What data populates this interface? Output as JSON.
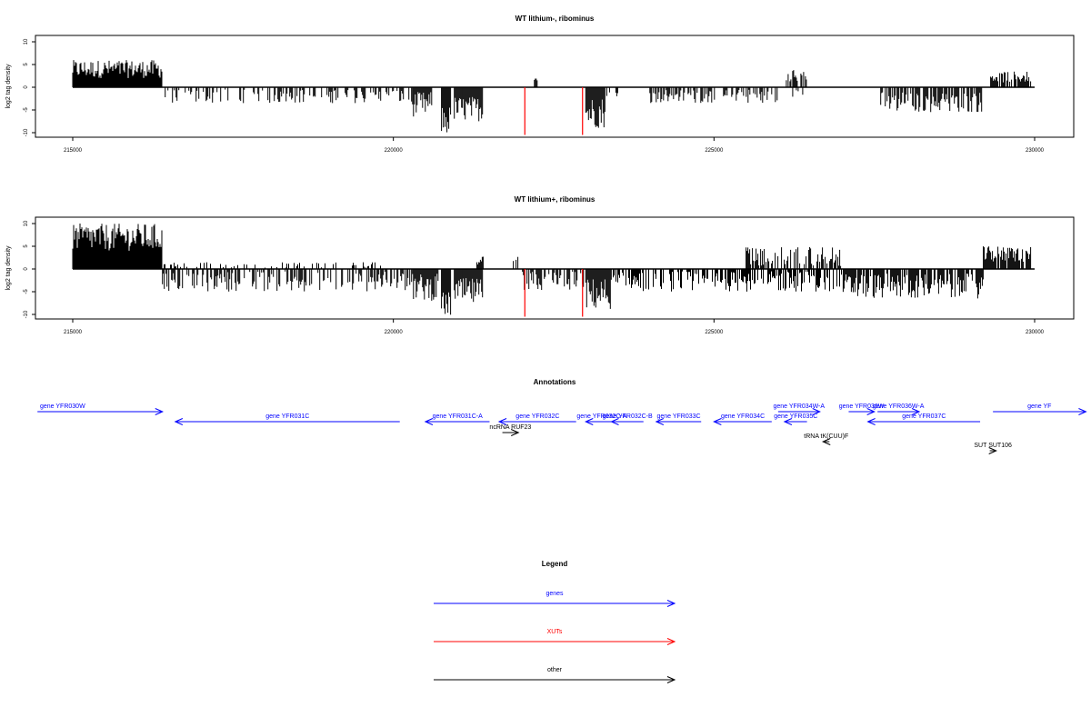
{
  "chart_data": [
    {
      "type": "bar",
      "title": "WT lithium-, ribominus",
      "xlabel": "",
      "ylabel": "log2 tag density",
      "xlim": [
        215000,
        230000
      ],
      "ylim": [
        -10,
        10
      ],
      "x_ticks": [
        "215000",
        "220000",
        "225000",
        "230000"
      ],
      "y_ticks": [
        "10",
        "5",
        "0",
        "-5",
        "-10"
      ],
      "segments": [
        {
          "from": 215000,
          "to": 216400,
          "min": 2,
          "max": 6
        },
        {
          "from": 216400,
          "to": 220300,
          "min": -3.5,
          "max": -0.5,
          "density": 0.4
        },
        {
          "from": 220300,
          "to": 220600,
          "min": -6.5,
          "max": -1
        },
        {
          "from": 220750,
          "to": 220900,
          "min": -10.5,
          "max": -4
        },
        {
          "from": 220950,
          "to": 221400,
          "min": -7.5,
          "max": -2
        },
        {
          "from": 222200,
          "to": 222250,
          "min": 1.5,
          "max": 2.5
        },
        {
          "from": 223000,
          "to": 223300,
          "min": -9,
          "max": -2
        },
        {
          "from": 223300,
          "to": 223500,
          "min": -2,
          "max": -0.5,
          "density": 0.3
        },
        {
          "from": 224000,
          "to": 226000,
          "min": -3.5,
          "max": -0.5,
          "density": 0.5
        },
        {
          "from": 226000,
          "to": 226400,
          "min": -3,
          "max": -0.5,
          "density": 0.2
        },
        {
          "from": 226100,
          "to": 226450,
          "min": 1,
          "max": 4,
          "density": 0.5
        },
        {
          "from": 227600,
          "to": 229200,
          "min": -5.5,
          "max": -1,
          "density": 0.7
        },
        {
          "from": 229300,
          "to": 229950,
          "min": 1,
          "max": 3.5,
          "density": 0.8
        }
      ],
      "red_marks": [
        222050,
        222950
      ],
      "red_color": "#ff0000"
    },
    {
      "type": "bar",
      "title": "WT lithium+, ribominus",
      "xlabel": "",
      "ylabel": "log2 tag density",
      "xlim": [
        215000,
        230000
      ],
      "ylim": [
        -10,
        10
      ],
      "x_ticks": [
        "215000",
        "220000",
        "225000",
        "230000"
      ],
      "y_ticks": [
        "10",
        "5",
        "0",
        "-5",
        "-10"
      ],
      "segments": [
        {
          "from": 215000,
          "to": 216400,
          "min": 4,
          "max": 10
        },
        {
          "from": 216400,
          "to": 220300,
          "min": -5,
          "max": -0.5,
          "density": 0.5
        },
        {
          "from": 216000,
          "to": 219800,
          "min": 0.3,
          "max": 1.5,
          "density": 0.2
        },
        {
          "from": 220300,
          "to": 220700,
          "min": -7,
          "max": -1
        },
        {
          "from": 220750,
          "to": 220900,
          "min": -10.5,
          "max": -5
        },
        {
          "from": 220950,
          "to": 221400,
          "min": -8,
          "max": -2
        },
        {
          "from": 221300,
          "to": 221400,
          "min": 1,
          "max": 3
        },
        {
          "from": 221800,
          "to": 222000,
          "min": 0.5,
          "max": 3,
          "density": 0.4
        },
        {
          "from": 222000,
          "to": 223000,
          "min": -5,
          "max": -0.5,
          "density": 0.6
        },
        {
          "from": 223000,
          "to": 223400,
          "min": -9,
          "max": -2
        },
        {
          "from": 223400,
          "to": 227000,
          "min": -5,
          "max": -0.5,
          "density": 0.6
        },
        {
          "from": 225500,
          "to": 227000,
          "min": 0.5,
          "max": 5,
          "density": 0.5
        },
        {
          "from": 227000,
          "to": 229200,
          "min": -6.5,
          "max": -1,
          "density": 0.8
        },
        {
          "from": 229200,
          "to": 229950,
          "min": 1.5,
          "max": 5,
          "density": 0.9
        }
      ],
      "red_marks": [
        222050,
        222950
      ],
      "red_color": "#ff0000"
    }
  ],
  "annotations": {
    "title": "Annotations",
    "gene_color": "#0000ff",
    "other_color": "#000000",
    "items": [
      {
        "label": "gene YFR030W",
        "start": 214450,
        "end": 216400,
        "row": 0,
        "dir": "right",
        "kind": "gene"
      },
      {
        "label": "gene YFR031C",
        "start": 216600,
        "end": 220100,
        "row": 1,
        "dir": "left",
        "kind": "gene"
      },
      {
        "label": "gene YFR031C-A",
        "start": 220500,
        "end": 221500,
        "row": 1,
        "dir": "left",
        "kind": "gene"
      },
      {
        "label": "gene YFR032C",
        "start": 221650,
        "end": 222850,
        "row": 1,
        "dir": "left",
        "kind": "gene"
      },
      {
        "label": "gene YFR032C-A",
        "start": 223000,
        "end": 223500,
        "row": 1,
        "dir": "left",
        "kind": "gene"
      },
      {
        "label": "gene YFR032C-B",
        "start": 223400,
        "end": 223900,
        "row": 1,
        "dir": "left",
        "kind": "gene"
      },
      {
        "label": "gene YFR033C",
        "start": 224100,
        "end": 224800,
        "row": 1,
        "dir": "left",
        "kind": "gene"
      },
      {
        "label": "gene YFR034C",
        "start": 225000,
        "end": 225900,
        "row": 1,
        "dir": "left",
        "kind": "gene"
      },
      {
        "label": "gene YFR035C",
        "start": 226100,
        "end": 226450,
        "row": 1,
        "dir": "left",
        "kind": "gene"
      },
      {
        "label": "gene YFR034W-A",
        "start": 226000,
        "end": 226650,
        "row": 0,
        "dir": "right",
        "kind": "gene"
      },
      {
        "label": "gene YFR036W",
        "start": 227100,
        "end": 227500,
        "row": 0,
        "dir": "right",
        "kind": "gene"
      },
      {
        "label": "gene YFR036W-A",
        "start": 227550,
        "end": 228200,
        "row": 0,
        "dir": "right",
        "kind": "gene"
      },
      {
        "label": "gene YFR037C",
        "start": 227400,
        "end": 229150,
        "row": 1,
        "dir": "left",
        "kind": "gene"
      },
      {
        "label": "gene YF",
        "start": 229350,
        "end": 230800,
        "row": 0,
        "dir": "right",
        "kind": "gene"
      },
      {
        "label": "ncRNA RUF23",
        "start": 221700,
        "end": 221950,
        "row": 2,
        "dir": "right",
        "kind": "other"
      },
      {
        "label": "tRNA tK(CUU)F",
        "start": 226700,
        "end": 226800,
        "row": 3,
        "dir": "left",
        "kind": "other"
      },
      {
        "label": "SUT SUT106",
        "start": 229300,
        "end": 229400,
        "row": 4,
        "dir": "right",
        "kind": "other"
      }
    ]
  },
  "legend": {
    "title": "Legend",
    "items": [
      {
        "label": "genes",
        "color": "#0000ff"
      },
      {
        "label": "XUTs",
        "color": "#ff0000"
      },
      {
        "label": "other",
        "color": "#000000"
      }
    ]
  }
}
